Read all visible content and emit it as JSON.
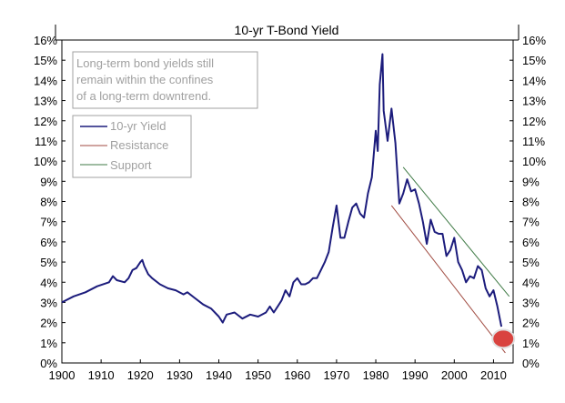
{
  "chart_data": {
    "type": "line",
    "title": "10-yr T-Bond Yield",
    "annotation": [
      "Long-term bond yields still",
      "remain within the confines",
      "of a long-term downtrend."
    ],
    "xlabel": "",
    "ylabel": "",
    "xlim": [
      1900,
      2015
    ],
    "ylim": [
      0,
      16
    ],
    "x_ticks": [
      "1900",
      "1910",
      "1920",
      "1930",
      "1940",
      "1950",
      "1960",
      "1970",
      "1980",
      "1990",
      "2000",
      "2010"
    ],
    "y_ticks": [
      "0%",
      "1%",
      "2%",
      "3%",
      "4%",
      "5%",
      "6%",
      "7%",
      "8%",
      "9%",
      "10%",
      "11%",
      "12%",
      "13%",
      "14%",
      "15%",
      "16%"
    ],
    "right_axis": true,
    "grid": false,
    "legend_position": "top-left",
    "series": [
      {
        "name": "10-yr Yield",
        "color": "#1c1c7c",
        "x": [
          1900,
          1903,
          1906,
          1909,
          1912,
          1913,
          1914,
          1916,
          1917,
          1918,
          1919,
          1920,
          1920.5,
          1921,
          1922,
          1923,
          1925,
          1927,
          1929,
          1931,
          1932,
          1934,
          1936,
          1938,
          1940,
          1941,
          1942,
          1944,
          1946,
          1948,
          1950,
          1952,
          1953,
          1954,
          1955,
          1956,
          1957,
          1958,
          1959,
          1960,
          1961,
          1962,
          1963,
          1964,
          1965,
          1966,
          1967,
          1968,
          1969,
          1970,
          1971,
          1972,
          1973,
          1974,
          1975,
          1976,
          1977,
          1978,
          1979,
          1980,
          1980.5,
          1981,
          1981.7,
          1982,
          1983,
          1984,
          1985,
          1986,
          1987,
          1988,
          1989,
          1990,
          1991,
          1992,
          1993,
          1994,
          1995,
          1996,
          1997,
          1998,
          1999,
          2000,
          2001,
          2002,
          2003,
          2004,
          2005,
          2006,
          2007,
          2008,
          2009,
          2010,
          2011,
          2012
        ],
        "y": [
          3.0,
          3.3,
          3.5,
          3.8,
          4.0,
          4.3,
          4.1,
          4.0,
          4.2,
          4.6,
          4.7,
          5.0,
          5.1,
          4.8,
          4.4,
          4.2,
          3.9,
          3.7,
          3.6,
          3.4,
          3.5,
          3.2,
          2.9,
          2.7,
          2.3,
          2.0,
          2.4,
          2.5,
          2.2,
          2.4,
          2.3,
          2.5,
          2.8,
          2.5,
          2.8,
          3.1,
          3.6,
          3.3,
          4.0,
          4.2,
          3.9,
          3.9,
          4.0,
          4.2,
          4.2,
          4.6,
          5.0,
          5.5,
          6.7,
          7.8,
          6.2,
          6.2,
          7.0,
          7.7,
          7.9,
          7.4,
          7.2,
          8.4,
          9.2,
          11.5,
          10.5,
          13.8,
          15.3,
          12.5,
          11.0,
          12.6,
          10.9,
          7.9,
          8.4,
          9.1,
          8.5,
          8.6,
          7.9,
          7.0,
          5.9,
          7.1,
          6.5,
          6.4,
          6.4,
          5.3,
          5.6,
          6.2,
          5.0,
          4.6,
          4.0,
          4.3,
          4.2,
          4.8,
          4.6,
          3.7,
          3.3,
          3.6,
          2.8,
          1.8
        ]
      },
      {
        "name": "Resistance",
        "color": "#a04a40",
        "x": [
          1984,
          2013
        ],
        "y": [
          7.8,
          0.5
        ]
      },
      {
        "name": "Support",
        "color": "#3f7a45",
        "x": [
          1987,
          2014
        ],
        "y": [
          9.7,
          3.3
        ]
      }
    ],
    "highlight_marker": {
      "x": 2012.5,
      "y": 1.2,
      "color": "#d9433f"
    }
  }
}
